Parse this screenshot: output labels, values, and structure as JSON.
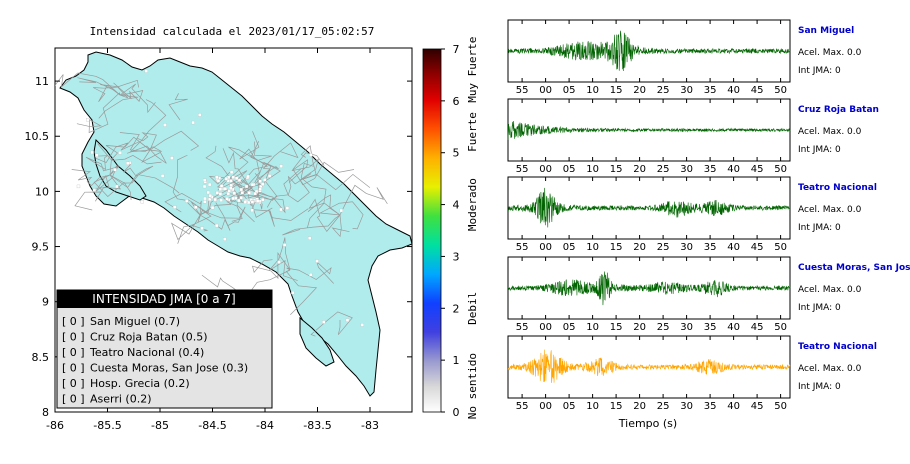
{
  "map": {
    "title": "Intensidad calculada el 2023/01/17_05:02:57",
    "x_ticks": [
      "-86",
      "-85.5",
      "-85",
      "-84.5",
      "-84",
      "-83.5",
      "-83"
    ],
    "y_ticks": [
      "11",
      "10.5",
      "10",
      "9.5",
      "9",
      "8.5",
      "8"
    ],
    "xlim": [
      -86,
      -82.6
    ],
    "ylim": [
      8,
      11.3
    ],
    "land_color": "#b0ecec",
    "legend": {
      "title": "INTENSIDAD JMA [0 a 7]",
      "items": [
        {
          "value": "[ 0 ]",
          "label": "San Miguel (0.7)"
        },
        {
          "value": "[ 0 ]",
          "label": "Cruz Roja Batan (0.5)"
        },
        {
          "value": "[ 0 ]",
          "label": "Teatro Nacional (0.4)"
        },
        {
          "value": "[ 0 ]",
          "label": "Cuesta Moras, San Jose (0.3)"
        },
        {
          "value": "[ 0 ]",
          "label": "Hosp. Grecia (0.2)"
        },
        {
          "value": "[ 0 ]",
          "label": "Aserri (0.2)"
        }
      ]
    }
  },
  "colorbar": {
    "ticks": [
      "0",
      "1",
      "2",
      "3",
      "4",
      "5",
      "6",
      "7"
    ],
    "range": [
      0,
      7
    ],
    "labels": [
      {
        "text": "No sentido",
        "at": 0.5
      },
      {
        "text": "Debil",
        "at": 2.0
      },
      {
        "text": "Moderado",
        "at": 4.0
      },
      {
        "text": "Fuerte",
        "at": 5.4
      },
      {
        "text": "Muy Fuerte",
        "at": 6.6
      }
    ]
  },
  "chart_data": {
    "type": "line",
    "xlabel": "Tiempo (s)",
    "x_tick_labels": [
      "55",
      "00",
      "05",
      "10",
      "15",
      "20",
      "25",
      "30",
      "35",
      "40",
      "45",
      "50"
    ],
    "x_tick_seconds": [
      -5,
      0,
      5,
      10,
      15,
      20,
      25,
      30,
      35,
      40,
      45,
      50
    ],
    "xlim": [
      -8,
      52
    ],
    "series": [
      {
        "name": "San Miguel",
        "color": "#006400",
        "peak_time": 16,
        "accel": "Acel. Max. 0.0",
        "int": "Int JMA: 0"
      },
      {
        "name": "Cruz Roja Batan",
        "color": "#006400",
        "peak_time": -7,
        "accel": "Acel. Max. 0.0",
        "int": "Int JMA: 0"
      },
      {
        "name": "Teatro Nacional",
        "color": "#006400",
        "peak_time": 0,
        "accel": "Acel. Max. 0.0",
        "int": "Int JMA: 0"
      },
      {
        "name": "Cuesta Moras, San Jose",
        "color": "#006400",
        "peak_time": 12.5,
        "accel": "Acel. Max. 0.0",
        "int": "Int JMA: 0"
      },
      {
        "name": "Teatro Nacional",
        "color": "#ffa500",
        "peak_time": 0.5,
        "accel": "Acel. Max. 0.0",
        "int": "Int JMA: 0"
      }
    ]
  }
}
